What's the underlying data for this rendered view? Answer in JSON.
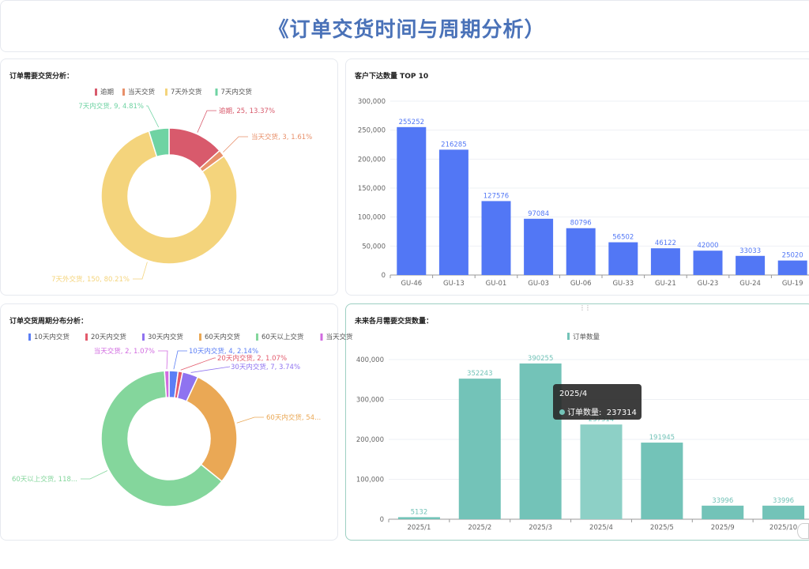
{
  "header": {
    "title": "《订单交货时间与周期分析）"
  },
  "tooltip": {
    "title": "2025/4",
    "series": "订单数量",
    "value": "237314"
  },
  "chart_data": [
    {
      "type": "pie",
      "title": "订单需要交货分析：",
      "legend": [
        "逾期",
        "当天交货",
        "7天外交货",
        "7天内交货"
      ],
      "slices": [
        {
          "name": "逾期",
          "value": 25,
          "label": "逾期, 25, 13.37%",
          "color": "#d85a6c"
        },
        {
          "name": "当天交货",
          "value": 3,
          "label": "当天交货, 3, 1.61%",
          "color": "#e8906a"
        },
        {
          "name": "7天外交货",
          "value": 150,
          "label": "7天外交货, 150, 80.21%",
          "color": "#f4d47c"
        },
        {
          "name": "7天内交货",
          "value": 9,
          "label": "7天内交货, 9, 4.81%",
          "color": "#6fd3a3"
        }
      ]
    },
    {
      "type": "bar",
      "title": "客户下达数量 TOP 10",
      "categories": [
        "GU-46",
        "GU-13",
        "GU-01",
        "GU-03",
        "GU-06",
        "GU-33",
        "GU-21",
        "GU-23",
        "GU-24",
        "GU-19"
      ],
      "values": [
        255252,
        216285,
        127576,
        97084,
        80796,
        56502,
        46122,
        42000,
        33033,
        25020
      ],
      "ylim": [
        0,
        300000
      ],
      "yticks": [
        "0",
        "50,000",
        "100,000",
        "150,000",
        "200,000",
        "250,000",
        "300,000"
      ],
      "color": "#5277f5"
    },
    {
      "type": "pie",
      "title": "订单交货周期分布分析：",
      "legend": [
        "10天内交货",
        "20天内交货",
        "30天内交货",
        "60天内交货",
        "60天以上交货",
        "当天交货"
      ],
      "slices": [
        {
          "name": "10天内交货",
          "value": 4,
          "label": "10天内交货, 4, 2.14%",
          "color": "#5b7ef5"
        },
        {
          "name": "20天内交货",
          "value": 2,
          "label": "20天内交货, 2, 1.07%",
          "color": "#e35a6c"
        },
        {
          "name": "30天内交货",
          "value": 7,
          "label": "30天内交货, 7, 3.74%",
          "color": "#8f73f0"
        },
        {
          "name": "60天内交货",
          "value": 54,
          "label": "60天内交货, 54...",
          "color": "#eaa855"
        },
        {
          "name": "60天以上交货",
          "value": 118,
          "label": "60天以上交货, 118...",
          "color": "#84d69c"
        },
        {
          "name": "当天交货",
          "value": 2,
          "label": "当天交货, 2, 1.07%",
          "color": "#d16be0"
        }
      ]
    },
    {
      "type": "bar",
      "title": "未来各月需要交货数量：",
      "legend": [
        "订单数量"
      ],
      "categories": [
        "2025/1",
        "2025/2",
        "2025/3",
        "2025/4",
        "2025/5",
        "2025/9",
        "2025/10"
      ],
      "values": [
        5132,
        352243,
        390255,
        237314,
        191945,
        33996,
        33996
      ],
      "labels": [
        "5132",
        "352243",
        "390255",
        "237314",
        "191945",
        "33996",
        "33996"
      ],
      "ylim": [
        0,
        400000
      ],
      "yticks": [
        "0",
        "100,000",
        "200,000",
        "300,000",
        "400,000"
      ],
      "color": "#73c3b8",
      "highlight_color": "#8dd0c6"
    }
  ]
}
